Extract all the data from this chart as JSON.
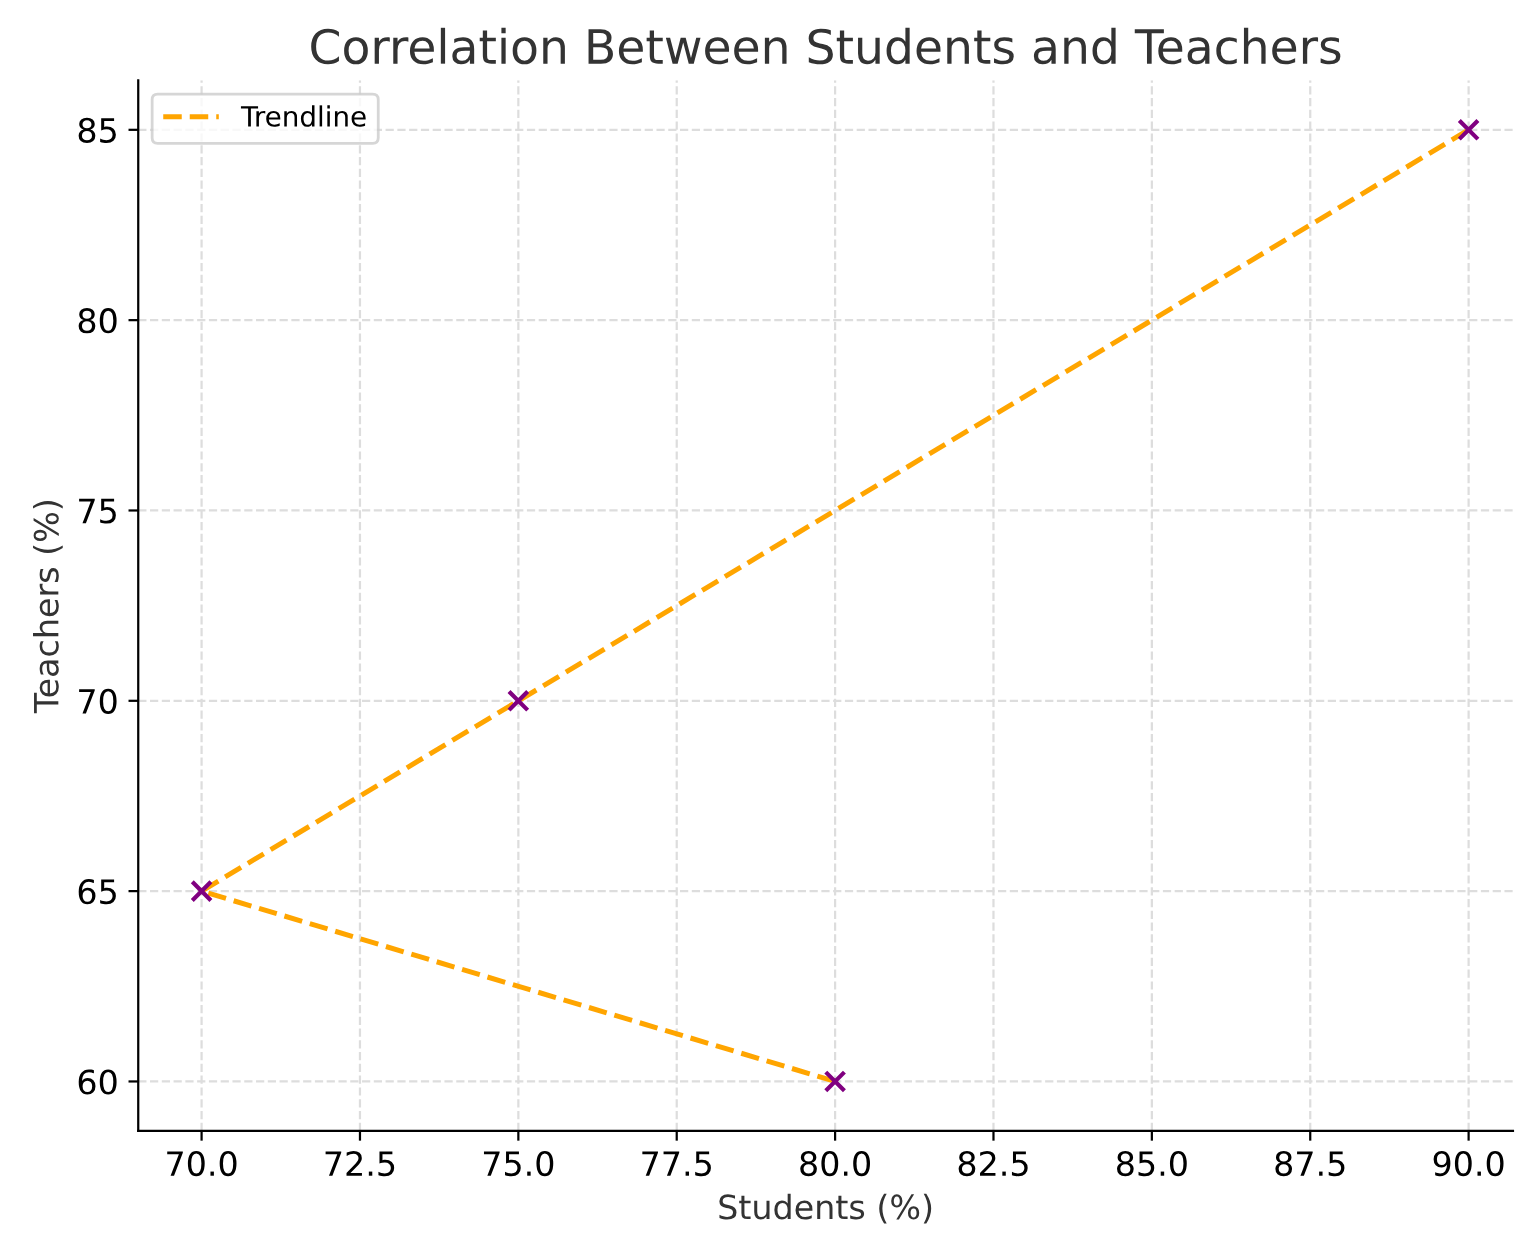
{
  "chart_data": {
    "type": "scatter",
    "title": "Correlation Between Students and Teachers",
    "xlabel": "Students (%)",
    "ylabel": "Teachers (%)",
    "series": [
      {
        "color": "#800080",
        "marker": "cross",
        "x": [
          70,
          75,
          80,
          90
        ],
        "values": [
          65,
          70,
          60,
          85
        ]
      },
      {
        "type": "line",
        "name": "Trendline",
        "color": "#ffa500",
        "line_style": "dashed",
        "marker": "none",
        "x": [
          80,
          70,
          75,
          90
        ],
        "values": [
          60,
          65,
          70,
          85
        ]
      }
    ],
    "xlim": [
      69,
      90.7
    ],
    "ylim": [
      58.7,
      86.3
    ],
    "xticks": [
      {
        "value": 70,
        "label": "70.0"
      },
      {
        "value": 72.5,
        "label": "72.5"
      },
      {
        "value": 75,
        "label": "75.0"
      },
      {
        "value": 77.5,
        "label": "77.5"
      },
      {
        "value": 80,
        "label": "80.0"
      },
      {
        "value": 82.5,
        "label": "82.5"
      },
      {
        "value": 85,
        "label": "85.0"
      },
      {
        "value": 87.5,
        "label": "87.5"
      },
      {
        "value": 90,
        "label": "90.0"
      }
    ],
    "yticks": [
      60,
      65,
      70,
      75,
      80,
      85
    ],
    "grid": true,
    "legend": "top left"
  }
}
